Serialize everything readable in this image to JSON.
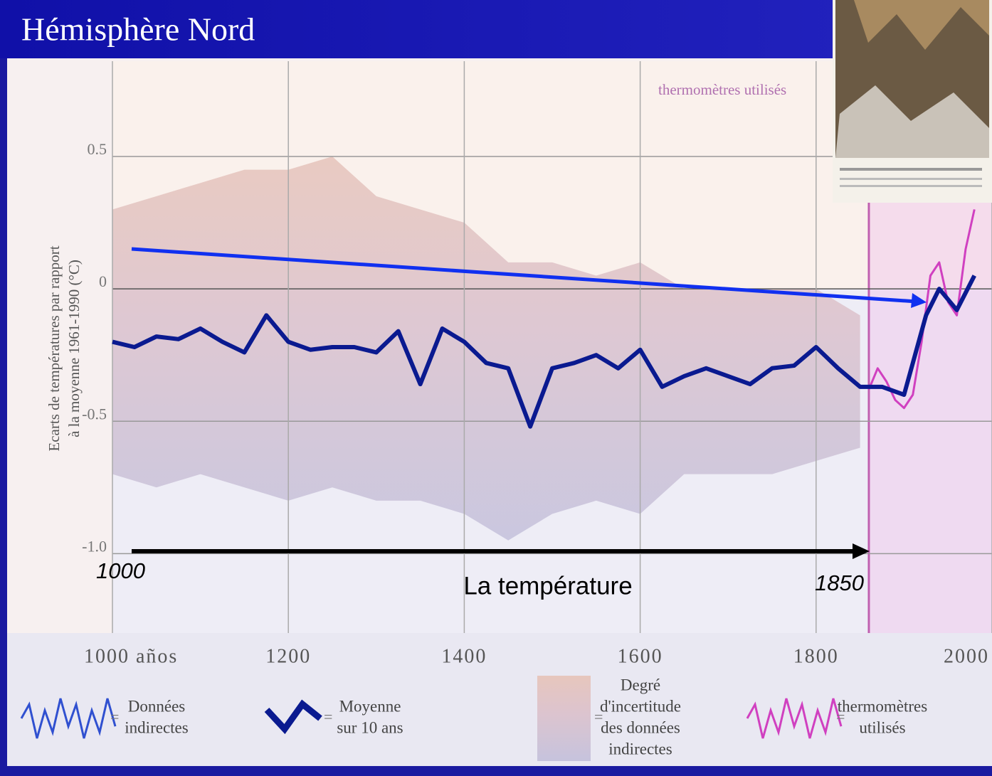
{
  "chart_data": {
    "type": "line",
    "title": "Hémisphère Nord",
    "y_label": [
      "Ecarts de températures par rapport",
      "à la moyenne 1961-1990 (°C)"
    ],
    "xlim": [
      1000,
      2000
    ],
    "ylim": [
      -1.3,
      0.86
    ],
    "xticks": [
      {
        "value": 1000,
        "label": "1000 años"
      },
      1200,
      1400,
      1600,
      1800,
      2000
    ],
    "yticks": [
      0.5,
      0,
      -0.5,
      {
        "value": -1,
        "label": "-1.0"
      }
    ],
    "grid": true,
    "series": [
      {
        "name": "Moyenne sur 10 ans",
        "color": "#0a1a90",
        "x": [
          1000,
          1025,
          1050,
          1075,
          1100,
          1125,
          1150,
          1175,
          1200,
          1225,
          1250,
          1275,
          1300,
          1325,
          1350,
          1375,
          1400,
          1425,
          1450,
          1475,
          1500,
          1525,
          1550,
          1575,
          1600,
          1625,
          1650,
          1675,
          1700,
          1725,
          1750,
          1775,
          1800,
          1825,
          1850,
          1875,
          1900,
          1925,
          1940,
          1960,
          1980
        ],
        "values": [
          -0.2,
          -0.22,
          -0.18,
          -0.19,
          -0.15,
          -0.2,
          -0.24,
          -0.1,
          -0.2,
          -0.23,
          -0.22,
          -0.22,
          -0.24,
          -0.16,
          -0.36,
          -0.15,
          -0.2,
          -0.28,
          -0.3,
          -0.52,
          -0.3,
          -0.28,
          -0.25,
          -0.3,
          -0.23,
          -0.37,
          -0.33,
          -0.3,
          -0.33,
          -0.36,
          -0.3,
          -0.29,
          -0.22,
          -0.3,
          -0.37,
          -0.37,
          -0.4,
          -0.1,
          0,
          -0.08,
          0.05
        ]
      },
      {
        "name": "thermomètres utilisés",
        "color": "#d040c0",
        "x": [
          1860,
          1870,
          1880,
          1890,
          1900,
          1910,
          1920,
          1930,
          1940,
          1950,
          1960,
          1970,
          1980
        ],
        "values": [
          -0.38,
          -0.3,
          -0.35,
          -0.42,
          -0.45,
          -0.4,
          -0.2,
          0.05,
          0.1,
          -0.05,
          -0.1,
          0.15,
          0.3
        ]
      }
    ],
    "uncertainty": {
      "x": [
        1000,
        1050,
        1100,
        1150,
        1200,
        1250,
        1300,
        1350,
        1400,
        1450,
        1500,
        1550,
        1600,
        1650,
        1700,
        1750,
        1800,
        1850
      ],
      "upper": [
        0.3,
        0.35,
        0.4,
        0.45,
        0.45,
        0.5,
        0.35,
        0.3,
        0.25,
        0.1,
        0.1,
        0.05,
        0.1,
        0,
        0,
        0,
        0,
        -0.1
      ],
      "lower": [
        -0.7,
        -0.75,
        -0.7,
        -0.75,
        -0.8,
        -0.75,
        -0.8,
        -0.8,
        -0.85,
        -0.95,
        -0.85,
        -0.8,
        -0.85,
        -0.7,
        -0.7,
        -0.7,
        -0.65,
        -0.6
      ]
    },
    "annotations": [
      "thermomètres utilisés",
      "1000",
      "La température",
      "1850"
    ],
    "legend": [
      [
        "Données",
        "indirectes"
      ],
      [
        "Moyenne",
        "sur 10 ans"
      ],
      [
        "Degré",
        "d'incertitude",
        "des données",
        "indirectes"
      ],
      [
        "thermomètres",
        "utilisés"
      ]
    ]
  }
}
